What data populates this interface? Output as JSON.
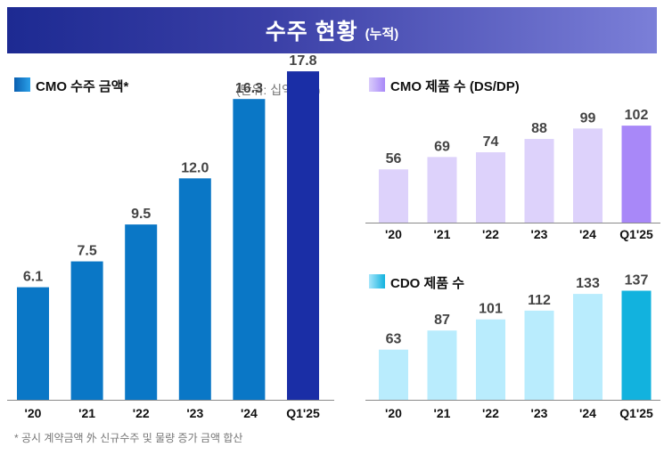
{
  "banner": {
    "title": "수주 현황",
    "subtitle": "(누적)"
  },
  "footnote": "* 공시 계약금액 外 신규수주 및 물량 증가 금액 합산",
  "chart_data": [
    {
      "type": "bar",
      "title": "CMO 수주 금액*",
      "unit": "(단위: 십억달러)",
      "categories": [
        "'20",
        "'21",
        "'22",
        "'23",
        "'24",
        "Q1'25"
      ],
      "values": [
        6.1,
        7.5,
        9.5,
        12.0,
        16.3,
        17.8
      ],
      "labels": [
        "6.1",
        "7.5",
        "9.5",
        "12.0",
        "16.3",
        "17.8"
      ],
      "ylim": [
        0,
        20.7
      ],
      "colors": [
        "#0a77c6",
        "#0a77c6",
        "#0a77c6",
        "#0a77c6",
        "#0a77c6",
        "#1a2ea6"
      ],
      "legend_color": "#0a77c6"
    },
    {
      "type": "bar",
      "title": "CMO 제품 수 (DS/DP)",
      "categories": [
        "'20",
        "'21",
        "'22",
        "'23",
        "'24",
        "Q1'25"
      ],
      "values": [
        56,
        69,
        74,
        88,
        99,
        102
      ],
      "labels": [
        "56",
        "69",
        "74",
        "88",
        "99",
        "102"
      ],
      "ylim": [
        0,
        133
      ],
      "colors": [
        "#ddd2fb",
        "#ddd2fb",
        "#ddd2fb",
        "#ddd2fb",
        "#ddd2fb",
        "#a888f8"
      ],
      "legend_color": "#c2acf9"
    },
    {
      "type": "bar",
      "title": "CDO 제품 수",
      "categories": [
        "'20",
        "'21",
        "'22",
        "'23",
        "'24",
        "Q1'25"
      ],
      "values": [
        63,
        87,
        101,
        112,
        133,
        137
      ],
      "labels": [
        "63",
        "87",
        "101",
        "112",
        "133",
        "137"
      ],
      "ylim": [
        0,
        170
      ],
      "colors": [
        "#b9ecfd",
        "#b9ecfd",
        "#b9ecfd",
        "#b9ecfd",
        "#b9ecfd",
        "#12b2de"
      ],
      "legend_color": "#4fcbee"
    }
  ]
}
